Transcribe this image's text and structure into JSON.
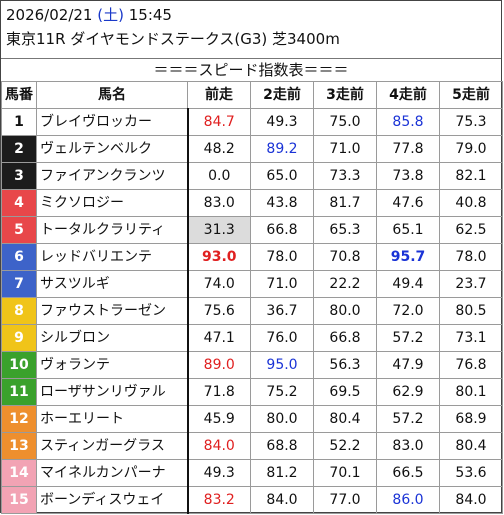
{
  "header": {
    "date": "2026/02/21",
    "day_of_week": "(土)",
    "time": "15:45",
    "race_info": "東京11R ダイヤモンドステークス(G3) 芝3400m",
    "banner": "＝＝＝スピード指数表＝＝＝"
  },
  "columns": [
    "馬番",
    "馬名",
    "前走",
    "2走前",
    "3走前",
    "4走前",
    "5走前"
  ],
  "rows": [
    {
      "num": "1",
      "name": "ブレイヴロッカー",
      "v": [
        "84.7",
        "49.3",
        "75.0",
        "85.8",
        "75.3"
      ],
      "style": [
        "red",
        "",
        "",
        "blue",
        ""
      ],
      "bg": "#ffffff",
      "fg": "#111111"
    },
    {
      "num": "2",
      "name": "ヴェルテンベルク",
      "v": [
        "48.2",
        "89.2",
        "71.0",
        "77.8",
        "79.0"
      ],
      "style": [
        "",
        "blue",
        "",
        "",
        ""
      ],
      "bg": "#1c1c1c",
      "fg": "#ffffff"
    },
    {
      "num": "3",
      "name": "ファイアンクランツ",
      "v": [
        "0.0",
        "65.0",
        "73.3",
        "73.8",
        "82.1"
      ],
      "style": [
        "",
        "",
        "",
        "",
        ""
      ],
      "bg": "#1c1c1c",
      "fg": "#ffffff"
    },
    {
      "num": "4",
      "name": "ミクソロジー",
      "v": [
        "83.0",
        "43.8",
        "81.7",
        "47.6",
        "40.8"
      ],
      "style": [
        "",
        "",
        "",
        "",
        ""
      ],
      "bg": "#e8474a",
      "fg": "#ffffff"
    },
    {
      "num": "5",
      "name": "トータルクラリティ",
      "v": [
        "31.3",
        "66.8",
        "65.3",
        "65.1",
        "62.5"
      ],
      "style": [
        "grey",
        "",
        "",
        "",
        ""
      ],
      "bg": "#e8474a",
      "fg": "#ffffff"
    },
    {
      "num": "6",
      "name": "レッドバリエンテ",
      "v": [
        "93.0",
        "78.0",
        "70.8",
        "95.7",
        "78.0"
      ],
      "style": [
        "red bold",
        "",
        "",
        "blue bold",
        ""
      ],
      "bg": "#3d63c9",
      "fg": "#ffffff"
    },
    {
      "num": "7",
      "name": "サスツルギ",
      "v": [
        "74.0",
        "71.0",
        "22.2",
        "49.4",
        "23.7"
      ],
      "style": [
        "",
        "",
        "",
        "",
        ""
      ],
      "bg": "#3d63c9",
      "fg": "#ffffff"
    },
    {
      "num": "8",
      "name": "ファウストラーゼン",
      "v": [
        "75.6",
        "36.7",
        "80.0",
        "72.0",
        "80.5"
      ],
      "style": [
        "",
        "",
        "",
        "",
        ""
      ],
      "bg": "#f0c419",
      "fg": "#ffffff"
    },
    {
      "num": "9",
      "name": "シルブロン",
      "v": [
        "47.1",
        "76.0",
        "66.8",
        "57.2",
        "73.1"
      ],
      "style": [
        "",
        "",
        "",
        "",
        ""
      ],
      "bg": "#f0c419",
      "fg": "#ffffff"
    },
    {
      "num": "10",
      "name": "ヴォランテ",
      "v": [
        "89.0",
        "95.0",
        "56.3",
        "47.9",
        "76.8"
      ],
      "style": [
        "red",
        "blue",
        "",
        "",
        ""
      ],
      "bg": "#3aa12c",
      "fg": "#ffffff"
    },
    {
      "num": "11",
      "name": "ローザサンリヴァル",
      "v": [
        "71.8",
        "75.2",
        "69.5",
        "62.9",
        "80.1"
      ],
      "style": [
        "",
        "",
        "",
        "",
        ""
      ],
      "bg": "#3aa12c",
      "fg": "#ffffff"
    },
    {
      "num": "12",
      "name": "ホーエリート",
      "v": [
        "45.9",
        "80.0",
        "80.4",
        "57.2",
        "68.9"
      ],
      "style": [
        "",
        "",
        "",
        "",
        ""
      ],
      "bg": "#ee8f2e",
      "fg": "#ffffff"
    },
    {
      "num": "13",
      "name": "スティンガーグラス",
      "v": [
        "84.0",
        "68.8",
        "52.2",
        "83.0",
        "80.4"
      ],
      "style": [
        "red",
        "",
        "",
        "",
        ""
      ],
      "bg": "#ee8f2e",
      "fg": "#ffffff"
    },
    {
      "num": "14",
      "name": "マイネルカンパーナ",
      "v": [
        "49.3",
        "81.2",
        "70.1",
        "66.5",
        "53.6"
      ],
      "style": [
        "",
        "",
        "",
        "",
        ""
      ],
      "bg": "#f2a3b4",
      "fg": "#ffffff"
    },
    {
      "num": "15",
      "name": "ボーンディスウェイ",
      "v": [
        "83.2",
        "84.0",
        "77.0",
        "86.0",
        "84.0"
      ],
      "style": [
        "red",
        "",
        "",
        "blue",
        ""
      ],
      "bg": "#f2a3b4",
      "fg": "#ffffff"
    }
  ]
}
